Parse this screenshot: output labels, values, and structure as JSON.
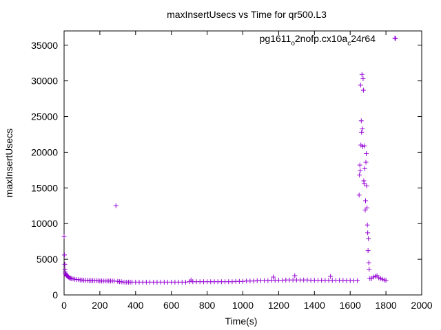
{
  "chart_data": {
    "type": "scatter",
    "title": "maxInsertUsecs vs Time for qr500.L3",
    "xlabel": "Time(s)",
    "ylabel": "maxInsertUsecs",
    "xlim": [
      0,
      2000
    ],
    "ylim": [
      0,
      37000
    ],
    "x_ticks": [
      "0",
      "200",
      "400",
      "600",
      "800",
      "1000",
      "1200",
      "1400",
      "1600",
      "1800",
      "2000"
    ],
    "y_ticks": [
      "0",
      "5000",
      "10000",
      "15000",
      "20000",
      "25000",
      "30000",
      "35000"
    ],
    "grid": false,
    "legend_position": "top-right",
    "series": [
      {
        "name": "pg1611_o2nofp.cx10a_c24r64",
        "legend": {
          "parts": [
            "pg1611",
            "o",
            "2nofp.cx10a",
            "c",
            "24r64"
          ]
        },
        "color": "#9400d3",
        "marker": "+",
        "points": [
          [
            0,
            8200
          ],
          [
            2,
            5600
          ],
          [
            4,
            4300
          ],
          [
            5,
            3600
          ],
          [
            6,
            3200
          ],
          [
            8,
            3000
          ],
          [
            10,
            2900
          ],
          [
            12,
            2800
          ],
          [
            15,
            2700
          ],
          [
            18,
            2650
          ],
          [
            20,
            2600
          ],
          [
            25,
            2500
          ],
          [
            30,
            2400
          ],
          [
            35,
            2350
          ],
          [
            40,
            2300
          ],
          [
            50,
            2250
          ],
          [
            60,
            2200
          ],
          [
            70,
            2150
          ],
          [
            80,
            2150
          ],
          [
            90,
            2100
          ],
          [
            100,
            2100
          ],
          [
            110,
            2050
          ],
          [
            120,
            2050
          ],
          [
            130,
            2050
          ],
          [
            140,
            2000
          ],
          [
            150,
            2000
          ],
          [
            160,
            2000
          ],
          [
            170,
            2000
          ],
          [
            180,
            2000
          ],
          [
            190,
            1980
          ],
          [
            200,
            1950
          ],
          [
            210,
            1950
          ],
          [
            220,
            1950
          ],
          [
            230,
            1950
          ],
          [
            240,
            1950
          ],
          [
            250,
            1950
          ],
          [
            260,
            1950
          ],
          [
            270,
            1950
          ],
          [
            280,
            1950
          ],
          [
            290,
            12500
          ],
          [
            300,
            1900
          ],
          [
            310,
            1850
          ],
          [
            320,
            1850
          ],
          [
            330,
            1800
          ],
          [
            340,
            1800
          ],
          [
            350,
            1800
          ],
          [
            360,
            1800
          ],
          [
            370,
            1800
          ],
          [
            380,
            1800
          ],
          [
            400,
            1800
          ],
          [
            420,
            1800
          ],
          [
            440,
            1800
          ],
          [
            460,
            1800
          ],
          [
            480,
            1800
          ],
          [
            500,
            1800
          ],
          [
            520,
            1800
          ],
          [
            540,
            1800
          ],
          [
            560,
            1800
          ],
          [
            580,
            1800
          ],
          [
            600,
            1800
          ],
          [
            620,
            1800
          ],
          [
            640,
            1800
          ],
          [
            660,
            1800
          ],
          [
            680,
            1800
          ],
          [
            700,
            1850
          ],
          [
            710,
            2100
          ],
          [
            720,
            1850
          ],
          [
            740,
            1850
          ],
          [
            760,
            1850
          ],
          [
            780,
            1850
          ],
          [
            800,
            1850
          ],
          [
            820,
            1850
          ],
          [
            840,
            1850
          ],
          [
            860,
            1850
          ],
          [
            880,
            1850
          ],
          [
            900,
            1850
          ],
          [
            920,
            1850
          ],
          [
            940,
            1850
          ],
          [
            960,
            1900
          ],
          [
            980,
            1900
          ],
          [
            1000,
            1900
          ],
          [
            1020,
            1950
          ],
          [
            1040,
            1950
          ],
          [
            1060,
            1950
          ],
          [
            1080,
            2000
          ],
          [
            1100,
            2000
          ],
          [
            1120,
            2000
          ],
          [
            1140,
            2000
          ],
          [
            1160,
            2050
          ],
          [
            1170,
            2500
          ],
          [
            1180,
            2050
          ],
          [
            1200,
            2050
          ],
          [
            1220,
            2050
          ],
          [
            1240,
            2100
          ],
          [
            1260,
            2100
          ],
          [
            1280,
            2100
          ],
          [
            1290,
            2700
          ],
          [
            1300,
            2100
          ],
          [
            1320,
            2100
          ],
          [
            1340,
            2100
          ],
          [
            1360,
            2100
          ],
          [
            1380,
            2050
          ],
          [
            1400,
            2050
          ],
          [
            1420,
            2050
          ],
          [
            1440,
            2050
          ],
          [
            1460,
            2050
          ],
          [
            1480,
            2050
          ],
          [
            1490,
            2600
          ],
          [
            1500,
            2050
          ],
          [
            1520,
            2050
          ],
          [
            1540,
            2050
          ],
          [
            1560,
            2050
          ],
          [
            1580,
            2000
          ],
          [
            1600,
            2000
          ],
          [
            1620,
            2000
          ],
          [
            1640,
            2000
          ],
          [
            1650,
            14000
          ],
          [
            1652,
            16800
          ],
          [
            1654,
            18200
          ],
          [
            1656,
            17400
          ],
          [
            1658,
            29400
          ],
          [
            1660,
            21000
          ],
          [
            1662,
            24400
          ],
          [
            1664,
            22800
          ],
          [
            1666,
            30900
          ],
          [
            1668,
            23300
          ],
          [
            1670,
            20800
          ],
          [
            1672,
            30300
          ],
          [
            1674,
            28700
          ],
          [
            1676,
            16000
          ],
          [
            1678,
            15600
          ],
          [
            1680,
            20900
          ],
          [
            1682,
            17700
          ],
          [
            1684,
            11900
          ],
          [
            1686,
            13200
          ],
          [
            1688,
            18600
          ],
          [
            1690,
            19800
          ],
          [
            1692,
            15300
          ],
          [
            1694,
            12200
          ],
          [
            1696,
            9800
          ],
          [
            1698,
            8700
          ],
          [
            1700,
            6200
          ],
          [
            1702,
            7900
          ],
          [
            1704,
            4500
          ],
          [
            1706,
            3600
          ],
          [
            1710,
            2300
          ],
          [
            1720,
            2300
          ],
          [
            1730,
            2500
          ],
          [
            1740,
            2600
          ],
          [
            1750,
            2700
          ],
          [
            1760,
            2400
          ],
          [
            1770,
            2300
          ],
          [
            1780,
            2200
          ],
          [
            1790,
            2100
          ],
          [
            1800,
            2050
          ],
          [
            1850,
            36000
          ]
        ]
      }
    ]
  }
}
